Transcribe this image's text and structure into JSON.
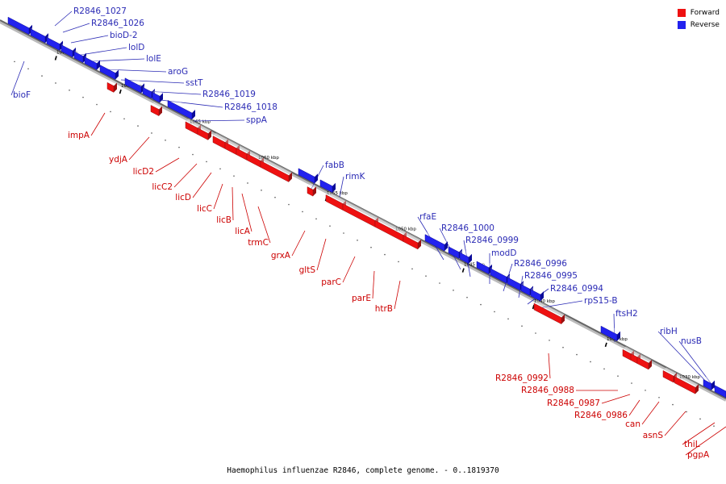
{
  "colors": {
    "forward": "#ee1111",
    "reverse": "#2222ee",
    "forward_text": "#cc0000",
    "reverse_text": "#2b2bb5"
  },
  "legend": {
    "forward_label": "Forward",
    "reverse_label": "Reverse"
  },
  "caption": "Haemophilus influenzae R2846, complete genome. - 0..1819370",
  "kbp_labels": [
    "1075 kbp",
    "1070 kbp",
    "1065 kbp",
    "1060 kbp",
    "1055 kbp",
    "1050 kbp",
    "1045 kbp",
    "1040 kbp",
    "1035 kbp",
    "1030 kbp"
  ],
  "genes_forward": [
    "impA",
    "ydjA",
    "licD2",
    "licC2",
    "licD",
    "licC",
    "licB",
    "licA",
    "trmC",
    "grxA",
    "gltS",
    "parC",
    "parE",
    "htrB",
    "R2846_0992",
    "R2846_0988",
    "R2846_0987",
    "R2846_0986",
    "can",
    "asnS",
    "thiL",
    "pgpA"
  ],
  "genes_reverse": [
    "R2846_1027",
    "R2846_1026",
    "bioD-2",
    "lolD",
    "lolE",
    "aroG",
    "sstT",
    "R2846_1019",
    "R2846_1018",
    "sppA",
    "bioF",
    "fabB",
    "rimK",
    "rfaE",
    "R2846_1000",
    "R2846_0999",
    "modD",
    "R2846_0996",
    "R2846_0995",
    "R2846_0994",
    "rpS15-B",
    "ftsH2",
    "ribH",
    "nusB"
  ]
}
